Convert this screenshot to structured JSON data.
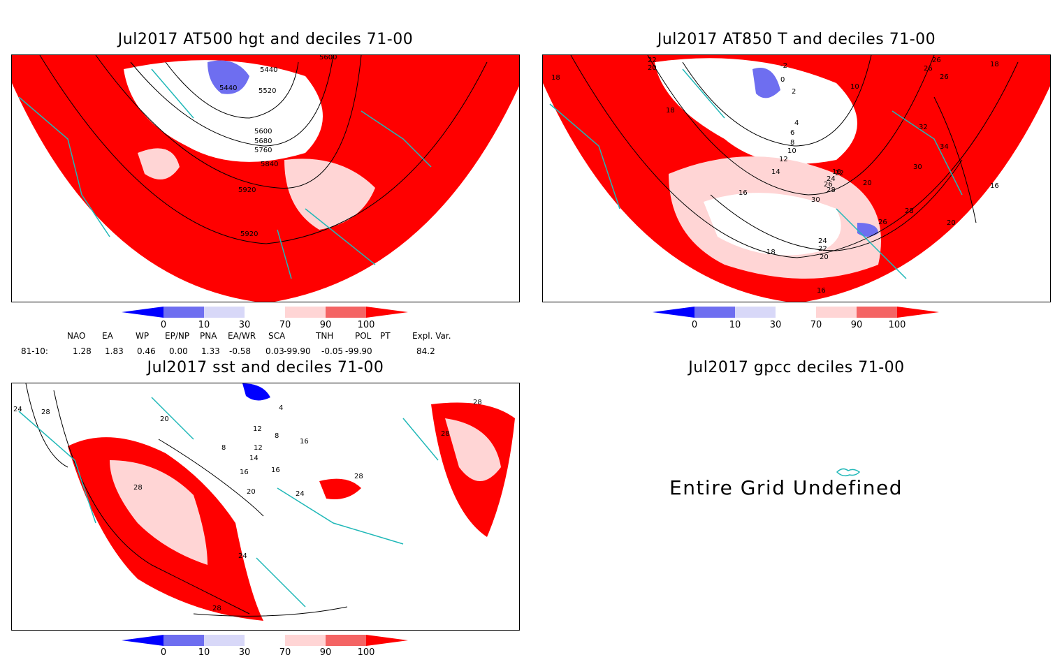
{
  "panels": [
    {
      "id": "at500",
      "title": "Jul2017 AT500 hgt and deciles 71-00",
      "contour_labels": [
        "5440",
        "5440",
        "5520",
        "5600",
        "5600",
        "5680",
        "5760",
        "5840",
        "5920",
        "5920"
      ]
    },
    {
      "id": "at850",
      "title": "Jul2017 AT850 T and deciles 71-00",
      "contour_labels": [
        "22",
        "20",
        "18",
        "18",
        "16",
        "-2",
        "0",
        "2",
        "10",
        "18",
        "26",
        "26",
        "26",
        "8",
        "6",
        "4",
        "10",
        "12",
        "14",
        "16",
        "22",
        "24",
        "26",
        "28",
        "30",
        "20",
        "32",
        "34",
        "30",
        "16",
        "28",
        "26",
        "24",
        "22",
        "20",
        "18",
        "20",
        "16"
      ]
    },
    {
      "id": "sst",
      "title": "Jul2017 sst and deciles 71-00",
      "contour_labels": [
        "24",
        "28",
        "20",
        "8",
        "12",
        "16",
        "16",
        "16",
        "20",
        "24",
        "28",
        "28",
        "24",
        "28",
        "28",
        "4",
        "8",
        "12",
        "14",
        "28"
      ]
    },
    {
      "id": "gpcc",
      "title": "Jul2017 gpcc deciles 71-00",
      "message": "Entire Grid Undefined"
    }
  ],
  "colorbar": {
    "ticks": [
      "0",
      "10",
      "30",
      "70",
      "90",
      "100"
    ],
    "colors": [
      "#0000ff",
      "#6e6ef0",
      "#d8d8f8",
      "#ffffff",
      "#ffd5d5",
      "#f46464",
      "#ff0000"
    ]
  },
  "indices": {
    "headers": [
      "NAO",
      "EA",
      "WP",
      "EP/NP",
      "PNA",
      "EA/WR",
      "SCA",
      "TNH",
      "POL",
      "PT",
      "Expl. Var."
    ],
    "row_label": "81-10:",
    "values": [
      "1.28",
      "1.83",
      "0.46",
      "0.00",
      "1.33",
      "-0.58",
      "0.03",
      "-99.90",
      "-0.05",
      "-99.90",
      "84.2"
    ]
  }
}
